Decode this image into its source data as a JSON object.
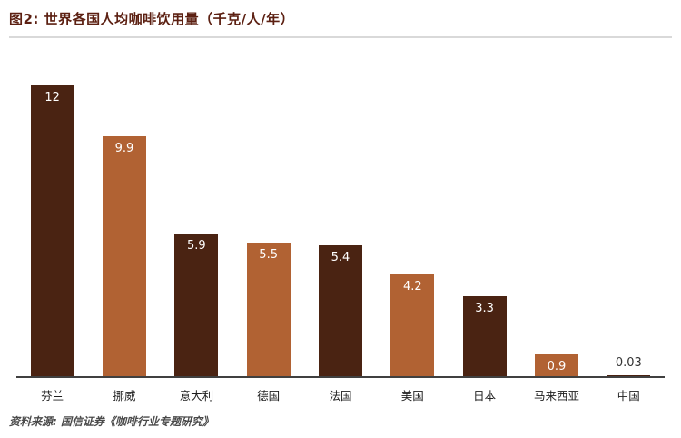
{
  "header": {
    "title": "图2: 世界各国人均咖啡饮用量（千克/人/年）"
  },
  "footer": {
    "source": "资料来源: 国信证券《咖啡行业专题研究》"
  },
  "chart_data": {
    "type": "bar",
    "title": "图2: 世界各国人均咖啡饮用量（千克/人/年）",
    "categories": [
      "芬兰",
      "挪威",
      "意大利",
      "德国",
      "法国",
      "美国",
      "日本",
      "马来西亚",
      "中国"
    ],
    "values": [
      12,
      9.9,
      5.9,
      5.5,
      5.4,
      4.2,
      3.3,
      0.9,
      0.03
    ],
    "value_labels": [
      "12",
      "9.9",
      "5.9",
      "5.5",
      "5.4",
      "4.2",
      "3.3",
      "0.9",
      "0.03"
    ],
    "xlabel": "",
    "ylabel": "",
    "ylim": [
      0,
      12
    ],
    "grid": false,
    "legend": false,
    "bar_colors": {
      "dark": "#4a2312",
      "light": "#b16233"
    },
    "value_label_color_inside": "#ffffff",
    "value_label_color_outside": "#333333"
  },
  "colors": {
    "title": "#5c2012",
    "divider": "#d9d9d9",
    "axis_line": "#404040",
    "background": "#ffffff"
  }
}
